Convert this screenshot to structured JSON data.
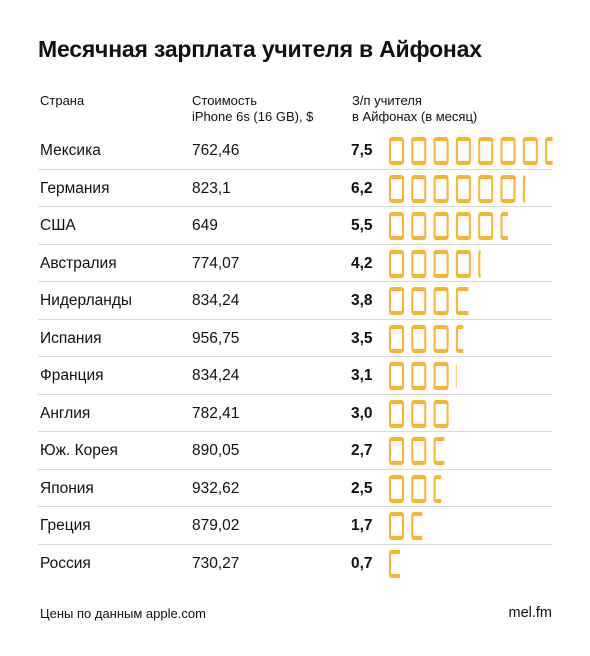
{
  "header": {
    "title": "Месячная зарплата учителя в Айфонах",
    "col_country": "Страна",
    "col_cost_line1": "Стоимость",
    "col_cost_line2": "iPhone 6s (16 GB), $",
    "col_ratio_line1": "З/п учителя",
    "col_ratio_line2": "в Айфонах (в месяц)"
  },
  "footer": {
    "source": "Цены по данным apple.com",
    "brand": "mel.fm"
  },
  "colors": {
    "phone": "#f5b731",
    "divider": "#d9d9d9"
  },
  "chart_data": {
    "type": "table",
    "title": "Месячная зарплата учителя в Айфонах",
    "columns": [
      "Страна",
      "Стоимость iPhone 6s (16 GB), $",
      "З/п учителя в Айфонах (в месяц)"
    ],
    "rows": [
      {
        "country": "Мексика",
        "cost": "762,46",
        "ratio_label": "7,5",
        "ratio": 7.5
      },
      {
        "country": "Германия",
        "cost": "823,1",
        "ratio_label": "6,2",
        "ratio": 6.2
      },
      {
        "country": "США",
        "cost": "649",
        "ratio_label": "5,5",
        "ratio": 5.5
      },
      {
        "country": "Австралия",
        "cost": "774,07",
        "ratio_label": "4,2",
        "ratio": 4.2
      },
      {
        "country": "Нидерланды",
        "cost": "834,24",
        "ratio_label": "3,8",
        "ratio": 3.8
      },
      {
        "country": "Испания",
        "cost": "956,75",
        "ratio_label": "3,5",
        "ratio": 3.5
      },
      {
        "country": "Франция",
        "cost": "834,24",
        "ratio_label": "3,1",
        "ratio": 3.1
      },
      {
        "country": "Англия",
        "cost": "782,41",
        "ratio_label": "3,0",
        "ratio": 3.0
      },
      {
        "country": "Юж. Корея",
        "cost": "890,05",
        "ratio_label": "2,7",
        "ratio": 2.7
      },
      {
        "country": "Япония",
        "cost": "932,62",
        "ratio_label": "2,5",
        "ratio": 2.5
      },
      {
        "country": "Греция",
        "cost": "879,02",
        "ratio_label": "1,7",
        "ratio": 1.7
      },
      {
        "country": "Россия",
        "cost": "730,27",
        "ratio_label": "0,7",
        "ratio": 0.7
      }
    ]
  }
}
